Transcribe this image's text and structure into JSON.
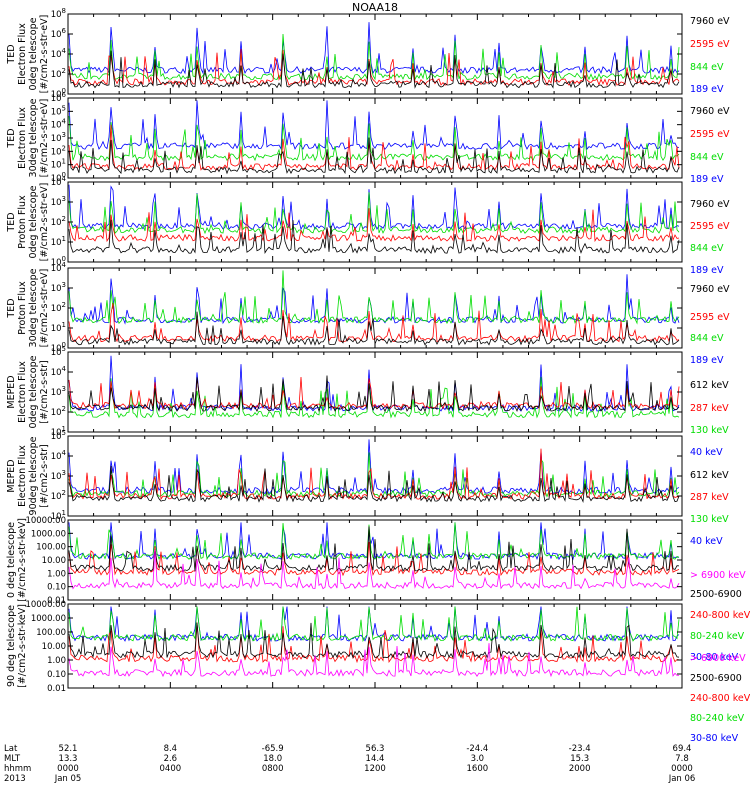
{
  "title": "NOAA18",
  "colors": {
    "blue": "#0000ff",
    "red": "#ff0000",
    "green": "#00dd00",
    "magenta": "#ff00ff",
    "black": "#000000"
  },
  "chart_data": [
    {
      "type": "line",
      "ylabel_lines": [
        "TED",
        "Electron Flux",
        "0deg telescope",
        "[#/cm2-s-str-eV]"
      ],
      "y_ticks": [
        "10^0",
        "10^2",
        "10^4",
        "10^6",
        "10^8"
      ],
      "series": [
        {
          "name": "7960 eV",
          "color": "#000000"
        },
        {
          "name": "2595 eV",
          "color": "#ff0000"
        },
        {
          "name": "844 eV",
          "color": "#00dd00"
        },
        {
          "name": "189 eV",
          "color": "#0000ff"
        }
      ]
    },
    {
      "type": "line",
      "ylabel_lines": [
        "TED",
        "Electron Flux",
        "30deg telescope",
        "[#/cm2-s-str-eV]"
      ],
      "y_ticks": [
        "10^0",
        "10^1",
        "10^2",
        "10^3",
        "10^4",
        "10^5",
        "10^6"
      ],
      "series": [
        {
          "name": "7960 eV",
          "color": "#000000"
        },
        {
          "name": "2595 eV",
          "color": "#ff0000"
        },
        {
          "name": "844 eV",
          "color": "#00dd00"
        },
        {
          "name": "189 eV",
          "color": "#0000ff"
        }
      ]
    },
    {
      "type": "line",
      "ylabel_lines": [
        "TED",
        "Proton Flux",
        "0deg telescope",
        "[#/cm2-s-str-eV]"
      ],
      "y_ticks": [
        "10^0",
        "10^1",
        "10^2",
        "10^3",
        "10^4"
      ],
      "series": [
        {
          "name": "7960 eV",
          "color": "#000000"
        },
        {
          "name": "2595 eV",
          "color": "#ff0000"
        },
        {
          "name": "844 eV",
          "color": "#00dd00"
        },
        {
          "name": "189 eV",
          "color": "#0000ff"
        }
      ]
    },
    {
      "type": "line",
      "ylabel_lines": [
        "TED",
        "Proton Flux",
        "30deg telescope",
        "[#/cm2-s-str-eV]"
      ],
      "y_ticks": [
        "10^0",
        "10^1",
        "10^2",
        "10^3",
        "10^4"
      ],
      "series": [
        {
          "name": "7960 eV",
          "color": "#000000"
        },
        {
          "name": "2595 eV",
          "color": "#ff0000"
        },
        {
          "name": "844 eV",
          "color": "#00dd00"
        },
        {
          "name": "189 eV",
          "color": "#0000ff"
        }
      ]
    },
    {
      "type": "line",
      "ylabel_lines": [
        "MEPED",
        "Electron Flux",
        "0deg telescope",
        "[#/cm2-s-str]"
      ],
      "y_ticks": [
        "10^1",
        "10^2",
        "10^3",
        "10^4",
        "10^5"
      ],
      "series": [
        {
          "name": "612 keV",
          "color": "#000000"
        },
        {
          "name": "287 keV",
          "color": "#ff0000"
        },
        {
          "name": "130 keV",
          "color": "#00dd00"
        },
        {
          "name": "40 keV",
          "color": "#0000ff"
        }
      ]
    },
    {
      "type": "line",
      "ylabel_lines": [
        "MEPED",
        "Electron Flux",
        "90deg telescope",
        "[#/cm2-s-str]"
      ],
      "y_ticks": [
        "10^1",
        "10^2",
        "10^3",
        "10^4",
        "10^5"
      ],
      "series": [
        {
          "name": "612 keV",
          "color": "#000000"
        },
        {
          "name": "287 keV",
          "color": "#ff0000"
        },
        {
          "name": "130 keV",
          "color": "#00dd00"
        },
        {
          "name": "40 keV",
          "color": "#0000ff"
        }
      ]
    },
    {
      "type": "line",
      "ylabel_lines": [
        "0 deg telescope",
        "[#/cm2-s-str-keV]"
      ],
      "y_ticks": [
        "0.01",
        "0.10",
        "1.00",
        "10.00",
        "100.00",
        "1000.00",
        "10000.00"
      ],
      "series": [
        {
          "name": "> 6900 keV",
          "color": "#ff00ff"
        },
        {
          "name": "2500-6900",
          "color": "#000000"
        },
        {
          "name": "240-800 keV",
          "color": "#ff0000"
        },
        {
          "name": "80-240 keV",
          "color": "#00dd00"
        },
        {
          "name": "30-80 keV",
          "color": "#0000ff"
        }
      ]
    },
    {
      "type": "line",
      "ylabel_lines": [
        "90 deg telescope",
        "[#/cm2-s-str-keV]"
      ],
      "y_ticks": [
        "0.01",
        "0.10",
        "1.00",
        "10.00",
        "100.00",
        "1000.00",
        "10000.00"
      ],
      "series": [
        {
          "name": "> 6900 keV",
          "color": "#ff00ff"
        },
        {
          "name": "2500-6900",
          "color": "#000000"
        },
        {
          "name": "240-800 keV",
          "color": "#ff0000"
        },
        {
          "name": "80-240 keV",
          "color": "#00dd00"
        },
        {
          "name": "30-80 keV",
          "color": "#0000ff"
        }
      ]
    }
  ],
  "time_axis": {
    "row_labels": [
      "Lat",
      "MLT",
      "hhmm",
      "2013"
    ],
    "ticks": [
      {
        "lat": "52.1",
        "mlt": "13.3",
        "hhmm": "0000",
        "date": "Jan 05"
      },
      {
        "lat": "8.4",
        "mlt": "2.6",
        "hhmm": "0400",
        "date": ""
      },
      {
        "lat": "-65.9",
        "mlt": "18.0",
        "hhmm": "0800",
        "date": ""
      },
      {
        "lat": "56.3",
        "mlt": "14.4",
        "hhmm": "1200",
        "date": ""
      },
      {
        "lat": "-24.4",
        "mlt": "3.0",
        "hhmm": "1600",
        "date": ""
      },
      {
        "lat": "-23.4",
        "mlt": "15.3",
        "hhmm": "2000",
        "date": ""
      },
      {
        "lat": "69.4",
        "mlt": "7.8",
        "hhmm": "0000",
        "date": "Jan 06"
      }
    ]
  }
}
